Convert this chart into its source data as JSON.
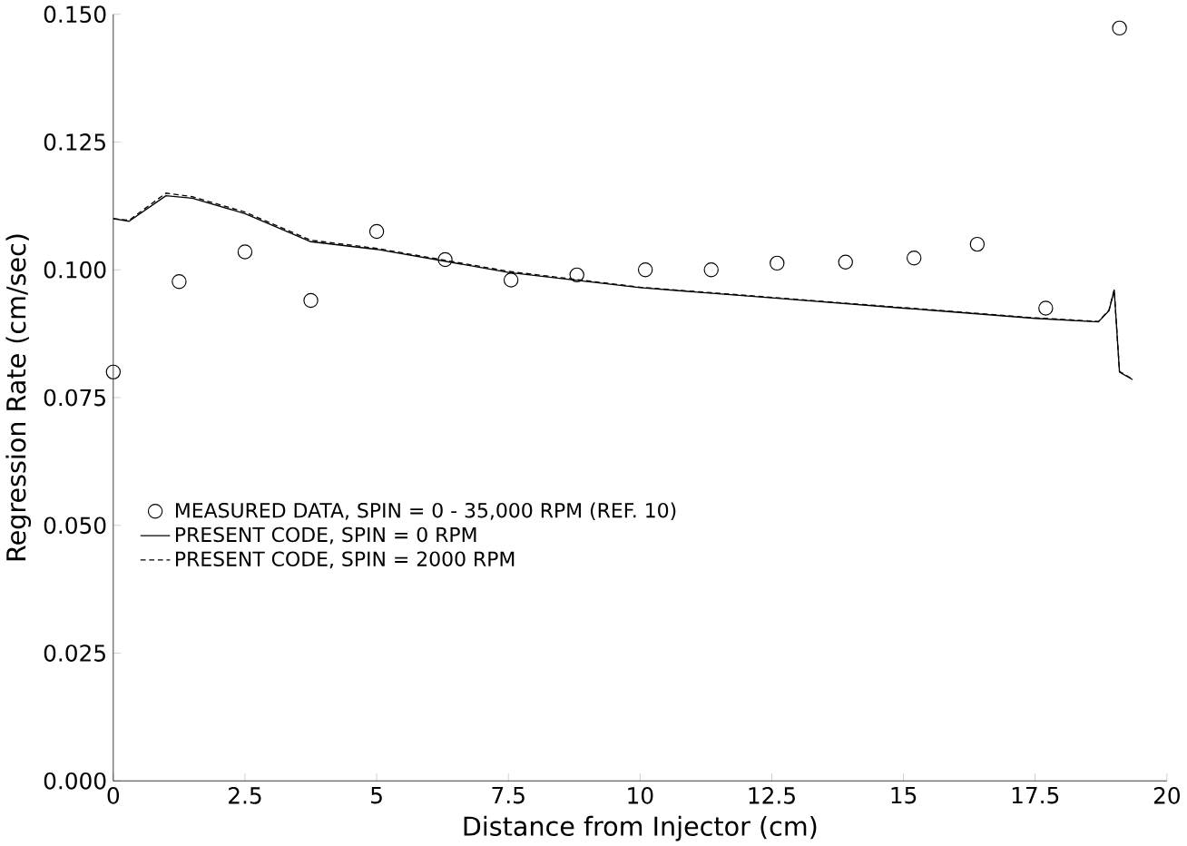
{
  "chart_data": {
    "type": "line",
    "xlabel": "Distance from Injector  (cm)",
    "ylabel": "Regression Rate  (cm/sec)",
    "xlim": [
      0,
      20
    ],
    "ylim": [
      0,
      0.15
    ],
    "xticks": [
      0,
      2.5,
      5,
      7.5,
      10,
      12.5,
      15,
      17.5,
      20
    ],
    "yticks": [
      {
        "value": 0,
        "label": "0.000"
      },
      {
        "value": 0.025,
        "label": "0.025"
      },
      {
        "value": 0.05,
        "label": "0.050"
      },
      {
        "value": 0.075,
        "label": "0.075"
      },
      {
        "value": 0.1,
        "label": "0.100"
      },
      {
        "value": 0.125,
        "label": "0.125"
      },
      {
        "value": 0.15,
        "label": "0.150"
      }
    ],
    "grid": false,
    "legend": "left",
    "series": [
      {
        "name": "MEASURED DATA, SPIN = 0 - 35,000 RPM (REF. 10)",
        "type": "scatter",
        "marker": "circle",
        "color": "#000000",
        "x": [
          0,
          1.25,
          2.5,
          3.75,
          5,
          6.3,
          7.55,
          8.8,
          10.1,
          11.35,
          12.6,
          13.9,
          15.2,
          16.4,
          17.7,
          19.1
        ],
        "values": [
          0.08,
          0.0977,
          0.1035,
          0.094,
          0.1075,
          0.102,
          0.098,
          0.099,
          0.1,
          0.1,
          0.1013,
          0.1015,
          0.1023,
          0.105,
          0.0925,
          0.1473
        ]
      },
      {
        "name": "PRESENT CODE, SPIN = 0 RPM",
        "line_style": "solid",
        "color": "#000000",
        "x": [
          0,
          0.3,
          1,
          1.5,
          2.5,
          3.75,
          5,
          7.5,
          10,
          12.5,
          15,
          17.5,
          18.7,
          18.9,
          19,
          19.05,
          19.1,
          19.35
        ],
        "values": [
          0.11,
          0.1095,
          0.1145,
          0.114,
          0.111,
          0.1055,
          0.104,
          0.0995,
          0.0965,
          0.0945,
          0.0925,
          0.0905,
          0.0898,
          0.092,
          0.096,
          0.088,
          0.08,
          0.0785
        ]
      },
      {
        "name": "PRESENT CODE, SPIN = 2000 RPM",
        "line_style": "dashed",
        "color": "#000000",
        "x": [
          0,
          0.3,
          1,
          1.5,
          2.5,
          3.75,
          5,
          7.5,
          10,
          12.5,
          15,
          17.5,
          18.7,
          18.9,
          19,
          19.05,
          19.1,
          19.35
        ],
        "values": [
          0.11,
          0.1097,
          0.115,
          0.1143,
          0.1113,
          0.1058,
          0.1042,
          0.0997,
          0.0966,
          0.0946,
          0.0926,
          0.0906,
          0.0899,
          0.0921,
          0.0961,
          0.0881,
          0.0801,
          0.0786
        ]
      }
    ]
  }
}
